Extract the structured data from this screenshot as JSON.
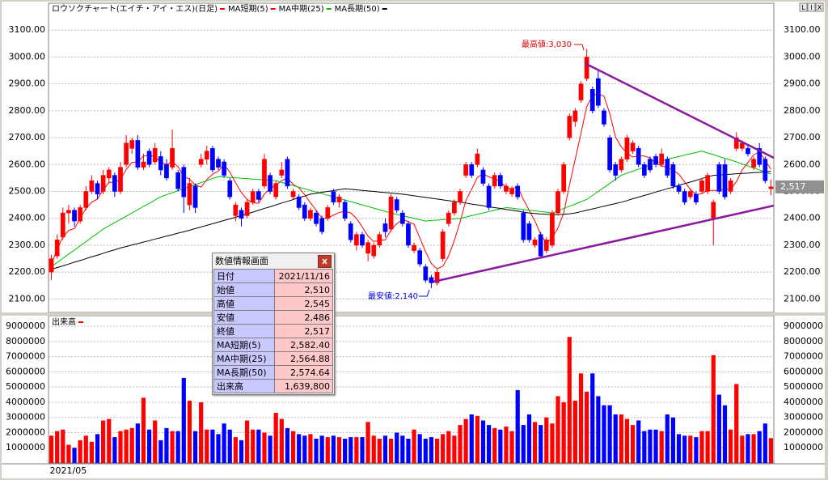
{
  "chart_data": {
    "type": "candlestick",
    "title": "ロウソクチャート(エイチ・アイ・エス)(日足)",
    "volume_title": "出来高",
    "window_buttons": [
      "L",
      "I",
      "X"
    ],
    "up_color": "#ff0000",
    "down_color": "#0000ff",
    "categories": [
      "2021/05",
      null,
      null,
      null,
      null,
      null,
      null,
      null,
      null,
      null,
      null,
      null,
      null,
      null,
      null,
      null,
      null,
      null,
      null,
      null,
      null,
      null,
      null,
      null,
      null,
      null,
      null,
      null,
      null,
      null,
      null,
      null,
      null,
      null,
      null,
      null,
      null,
      null,
      null,
      null,
      null,
      null,
      null,
      null,
      null,
      null,
      null,
      null,
      null,
      null,
      null,
      null,
      null,
      null,
      null,
      null,
      null,
      null,
      null,
      null,
      null,
      null,
      null,
      null,
      null,
      null,
      null,
      null,
      null,
      null,
      null,
      null,
      null,
      null,
      null,
      null,
      null,
      null,
      null,
      null,
      null,
      null,
      null,
      null,
      null,
      null,
      null,
      null,
      null,
      null,
      null,
      null,
      null,
      null,
      null,
      null,
      null,
      null,
      null,
      null,
      null,
      null,
      null,
      null,
      null,
      null,
      null,
      null,
      null,
      null,
      null,
      null,
      null,
      null,
      null,
      null,
      null,
      null,
      null,
      null,
      null,
      null,
      null,
      null,
      null,
      null
    ],
    "open": [
      2200,
      2260,
      2330,
      2420,
      2430,
      2390,
      2440,
      2500,
      2530,
      2500,
      2550,
      2560,
      2500,
      2600,
      2660,
      2690,
      2590,
      2650,
      2610,
      2630,
      2600,
      2590,
      2570,
      2590,
      2450,
      2520,
      2600,
      2620,
      2660,
      2620,
      2610,
      2540,
      2410,
      2430,
      2410,
      2460,
      2500,
      2520,
      2560,
      2480,
      2560,
      2620,
      2480,
      2480,
      2450,
      2400,
      2420,
      2400,
      2400,
      2500,
      2460,
      2460,
      2380,
      2300,
      2340,
      2270,
      2260,
      2300,
      2380,
      2360,
      2470,
      2420,
      2380,
      2280,
      2280,
      2220,
      2180,
      2160,
      2250,
      2380,
      2420,
      2460,
      2560,
      2600,
      2600,
      2580,
      2520,
      2520,
      2560,
      2500,
      2490,
      2520,
      2420,
      2380,
      2300,
      2340,
      2280,
      2300,
      2420,
      2500,
      2700,
      2760,
      2840,
      2920,
      2880,
      2920,
      2800,
      2700,
      2600,
      2580,
      2620,
      2650,
      2660,
      2600,
      2620,
      2630,
      2600,
      2620,
      2600,
      2520,
      2500,
      2480,
      2490,
      2500,
      2500,
      2400,
      2600,
      2600,
      2500,
      2660,
      2660,
      2660,
      2590,
      2660,
      2620,
      2510
    ],
    "high": [
      2265,
      2340,
      2440,
      2450,
      2440,
      2450,
      2520,
      2560,
      2540,
      2580,
      2590,
      2570,
      2610,
      2710,
      2700,
      2710,
      2640,
      2660,
      2680,
      2650,
      2620,
      2730,
      2580,
      2600,
      2550,
      2530,
      2640,
      2670,
      2670,
      2630,
      2620,
      2550,
      2460,
      2440,
      2470,
      2510,
      2510,
      2640,
      2570,
      2540,
      2610,
      2630,
      2510,
      2490,
      2460,
      2440,
      2430,
      2410,
      2450,
      2510,
      2490,
      2470,
      2390,
      2350,
      2350,
      2320,
      2310,
      2350,
      2400,
      2490,
      2480,
      2430,
      2390,
      2310,
      2290,
      2230,
      2190,
      2210,
      2360,
      2430,
      2470,
      2510,
      2610,
      2610,
      2660,
      2590,
      2530,
      2570,
      2570,
      2530,
      2520,
      2530,
      2430,
      2390,
      2330,
      2350,
      2330,
      2430,
      2510,
      2610,
      2790,
      2810,
      2910,
      3030,
      2890,
      2950,
      2810,
      2710,
      2610,
      2630,
      2710,
      2690,
      2670,
      2610,
      2630,
      2640,
      2660,
      2630,
      2610,
      2530,
      2510,
      2510,
      2500,
      2550,
      2570,
      2470,
      2610,
      2620,
      2550,
      2720,
      2690,
      2670,
      2630,
      2680,
      2630,
      2545
    ],
    "low": [
      2170,
      2250,
      2320,
      2380,
      2370,
      2380,
      2430,
      2490,
      2470,
      2490,
      2530,
      2480,
      2490,
      2590,
      2640,
      2580,
      2580,
      2590,
      2600,
      2560,
      2540,
      2580,
      2500,
      2420,
      2430,
      2420,
      2590,
      2600,
      2570,
      2580,
      2550,
      2470,
      2390,
      2370,
      2400,
      2450,
      2460,
      2510,
      2490,
      2470,
      2550,
      2510,
      2470,
      2430,
      2390,
      2390,
      2370,
      2340,
      2390,
      2450,
      2440,
      2390,
      2310,
      2280,
      2290,
      2240,
      2250,
      2290,
      2330,
      2350,
      2420,
      2370,
      2290,
      2270,
      2220,
      2160,
      2140,
      2150,
      2240,
      2370,
      2410,
      2450,
      2550,
      2550,
      2590,
      2520,
      2430,
      2510,
      2510,
      2490,
      2480,
      2470,
      2310,
      2310,
      2290,
      2250,
      2270,
      2290,
      2410,
      2490,
      2690,
      2740,
      2830,
      2910,
      2790,
      2810,
      2740,
      2570,
      2540,
      2570,
      2610,
      2640,
      2590,
      2550,
      2570,
      2590,
      2590,
      2550,
      2510,
      2490,
      2450,
      2470,
      2450,
      2490,
      2490,
      2300,
      2490,
      2470,
      2490,
      2650,
      2650,
      2630,
      2580,
      2590,
      2530,
      2486
    ],
    "close": [
      2250,
      2320,
      2420,
      2430,
      2390,
      2440,
      2500,
      2540,
      2490,
      2560,
      2580,
      2500,
      2590,
      2680,
      2690,
      2590,
      2610,
      2600,
      2660,
      2580,
      2550,
      2660,
      2510,
      2480,
      2530,
      2440,
      2620,
      2650,
      2580,
      2590,
      2560,
      2480,
      2450,
      2400,
      2460,
      2500,
      2470,
      2620,
      2500,
      2530,
      2580,
      2520,
      2500,
      2440,
      2400,
      2430,
      2380,
      2350,
      2440,
      2460,
      2480,
      2400,
      2320,
      2340,
      2300,
      2310,
      2300,
      2340,
      2350,
      2480,
      2430,
      2380,
      2300,
      2300,
      2230,
      2170,
      2160,
      2200,
      2350,
      2420,
      2460,
      2500,
      2600,
      2560,
      2640,
      2530,
      2440,
      2560,
      2520,
      2520,
      2510,
      2480,
      2320,
      2320,
      2320,
      2260,
      2320,
      2420,
      2500,
      2600,
      2780,
      2800,
      2900,
      3000,
      2800,
      2820,
      2750,
      2580,
      2560,
      2620,
      2700,
      2680,
      2600,
      2560,
      2580,
      2600,
      2640,
      2560,
      2520,
      2500,
      2460,
      2500,
      2460,
      2540,
      2560,
      2460,
      2500,
      2480,
      2540,
      2700,
      2680,
      2640,
      2620,
      2600,
      2540,
      2517
    ],
    "volume": [
      1800000,
      2100000,
      2200000,
      1200000,
      1000000,
      1500000,
      1800000,
      1400000,
      1900000,
      2800000,
      2900000,
      1700000,
      2100000,
      2200000,
      2300000,
      2600000,
      4300000,
      2200000,
      2800000,
      1500000,
      2300000,
      2100000,
      2100000,
      5600000,
      4100000,
      2100000,
      4000000,
      2200000,
      2200000,
      1900000,
      2600000,
      2200000,
      1700000,
      1500000,
      2800000,
      2200000,
      2200000,
      2000000,
      1800000,
      3300000,
      2900000,
      2300000,
      2100000,
      1900000,
      1800000,
      1900000,
      1600000,
      1800000,
      1700000,
      1800000,
      1700000,
      1600000,
      1700000,
      1700000,
      1700000,
      2700000,
      1800000,
      1600000,
      1800000,
      1600000,
      2000000,
      1800000,
      1600000,
      2200000,
      1900000,
      1600000,
      1700000,
      1600000,
      1900000,
      2100000,
      1800000,
      2500000,
      2900000,
      3200000,
      3100000,
      2800000,
      2500000,
      2300000,
      2200000,
      2400000,
      2100000,
      4800000,
      2500000,
      3200000,
      2700000,
      2500000,
      3000000,
      2600000,
      4400000,
      4000000,
      8300000,
      4100000,
      5900000,
      4700000,
      5900000,
      4400000,
      3800000,
      3800000,
      3200000,
      3200000,
      2900000,
      2500000,
      2800000,
      2100000,
      2200000,
      2200000,
      2100000,
      3200000,
      3000000,
      1900000,
      1800000,
      1800000,
      1700000,
      2100000,
      2100000,
      7100000,
      4500000,
      3800000,
      2200000,
      5200000,
      1800000,
      1900000,
      1900000,
      2100000,
      2600000,
      1639800
    ],
    "series": [
      {
        "name": "MA短期(5)",
        "color": "#ff0000",
        "values": [
          2230,
          2285,
          2330,
          2355,
          2362,
          2400,
          2436,
          2460,
          2472,
          2506,
          2534,
          2534,
          2544,
          2582,
          2608,
          2610,
          2632,
          2634,
          2630,
          2608,
          2600,
          2610,
          2592,
          2556,
          2546,
          2524,
          2516,
          2544,
          2564,
          2576,
          2600,
          2572,
          2532,
          2496,
          2470,
          2458,
          2456,
          2490,
          2510,
          2524,
          2540,
          2550,
          2526,
          2514,
          2488,
          2458,
          2430,
          2400,
          2400,
          2412,
          2422,
          2426,
          2420,
          2400,
          2368,
          2334,
          2314,
          2318,
          2320,
          2356,
          2380,
          2396,
          2388,
          2378,
          2328,
          2276,
          2232,
          2212,
          2222,
          2260,
          2318,
          2386,
          2466,
          2508,
          2552,
          2566,
          2554,
          2546,
          2538,
          2514,
          2510,
          2518,
          2470,
          2430,
          2390,
          2340,
          2308,
          2328,
          2364,
          2420,
          2524,
          2620,
          2716,
          2816,
          2856,
          2864,
          2854,
          2790,
          2702,
          2666,
          2642,
          2628,
          2632,
          2632,
          2624,
          2604,
          2596,
          2588,
          2580,
          2564,
          2536,
          2508,
          2488,
          2492,
          2504,
          2504,
          2504,
          2508,
          2508,
          2536,
          2580,
          2608,
          2636,
          2648,
          2616,
          2582.4
        ]
      },
      {
        "name": "MA中期(25)",
        "color": "#00c000",
        "values": [
          2220,
          2236,
          2251,
          2267,
          2282,
          2298,
          2313,
          2329,
          2344,
          2360,
          2372,
          2384,
          2396,
          2408,
          2420,
          2432,
          2444,
          2456,
          2468,
          2480,
          2488,
          2495,
          2503,
          2510,
          2518,
          2525,
          2533,
          2540,
          2548,
          2555,
          2554,
          2552,
          2551,
          2549,
          2548,
          2546,
          2545,
          2543,
          2542,
          2540,
          2534,
          2528,
          2522,
          2516,
          2510,
          2504,
          2498,
          2492,
          2486,
          2480,
          2474,
          2468,
          2462,
          2456,
          2450,
          2444,
          2438,
          2432,
          2426,
          2420,
          2415,
          2410,
          2405,
          2400,
          2395,
          2390,
          2392,
          2393,
          2395,
          2397,
          2398,
          2400,
          2405,
          2410,
          2415,
          2420,
          2425,
          2430,
          2435,
          2440,
          2438,
          2435,
          2433,
          2430,
          2428,
          2425,
          2423,
          2420,
          2428,
          2437,
          2445,
          2453,
          2462,
          2470,
          2485,
          2500,
          2515,
          2530,
          2545,
          2560,
          2568,
          2575,
          2583,
          2590,
          2598,
          2605,
          2613,
          2620,
          2625,
          2630,
          2635,
          2640,
          2645,
          2650,
          2643,
          2637,
          2630,
          2623,
          2617,
          2610,
          2602,
          2595,
          2587,
          2580,
          2572,
          2564.88
        ]
      },
      {
        "name": "MA長期(50)",
        "color": "#000000",
        "values": [
          2210,
          2217,
          2223,
          2230,
          2237,
          2243,
          2250,
          2257,
          2263,
          2270,
          2277,
          2283,
          2290,
          2295,
          2301,
          2306,
          2312,
          2317,
          2323,
          2328,
          2334,
          2339,
          2345,
          2350,
          2356,
          2362,
          2368,
          2374,
          2380,
          2386,
          2392,
          2398,
          2404,
          2410,
          2417,
          2423,
          2430,
          2437,
          2443,
          2450,
          2457,
          2463,
          2470,
          2477,
          2483,
          2490,
          2493,
          2497,
          2500,
          2503,
          2507,
          2510,
          2508,
          2506,
          2504,
          2502,
          2500,
          2498,
          2496,
          2494,
          2492,
          2490,
          2487,
          2484,
          2481,
          2478,
          2475,
          2472,
          2469,
          2466,
          2463,
          2460,
          2457,
          2453,
          2450,
          2447,
          2443,
          2440,
          2437,
          2433,
          2430,
          2427,
          2423,
          2420,
          2418,
          2416,
          2415,
          2414,
          2414,
          2415,
          2417,
          2420,
          2425,
          2430,
          2435,
          2440,
          2445,
          2450,
          2455,
          2460,
          2466,
          2473,
          2479,
          2485,
          2491,
          2498,
          2504,
          2510,
          2516,
          2523,
          2529,
          2535,
          2541,
          2548,
          2554,
          2560,
          2561,
          2563,
          2564,
          2566,
          2567,
          2568,
          2570,
          2571,
          2573,
          2574.64
        ]
      }
    ],
    "ylim": [
      2050,
      3200
    ],
    "yticks": [
      {
        "value": 2100,
        "label": "2100.00"
      },
      {
        "value": 2200,
        "label": "2200.00"
      },
      {
        "value": 2300,
        "label": "2300.00"
      },
      {
        "value": 2400,
        "label": "2400.00"
      },
      {
        "value": 2500,
        "label": "2500.00"
      },
      {
        "value": 2600,
        "label": "2600.00"
      },
      {
        "value": 2700,
        "label": "2700.00"
      },
      {
        "value": 2800,
        "label": "2800.00"
      },
      {
        "value": 2900,
        "label": "2900.00"
      },
      {
        "value": 3000,
        "label": "3000.00"
      },
      {
        "value": 3100,
        "label": "3100.00"
      }
    ],
    "volume_ylim": [
      0,
      9700000
    ],
    "volume_yticks": [
      1000000,
      2000000,
      3000000,
      4000000,
      5000000,
      6000000,
      7000000,
      8000000,
      9000000
    ],
    "grid": true,
    "last_close_label": "2,517",
    "annotations": [
      {
        "text": "最高値:3,030"
      },
      {
        "text": "最安値:2,140"
      }
    ]
  },
  "info_panel": {
    "title": "数値情報画面",
    "rows": [
      [
        "日付",
        "2021/11/16"
      ],
      [
        "始値",
        "2,510"
      ],
      [
        "高値",
        "2,545"
      ],
      [
        "安値",
        "2,486"
      ],
      [
        "終値",
        "2,517"
      ],
      [
        "MA短期(5)",
        "2,582.40"
      ],
      [
        "MA中期(25)",
        "2,564.88"
      ],
      [
        "MA長期(50)",
        "2,574.64"
      ],
      [
        "出来高",
        "1,639,800"
      ]
    ]
  }
}
